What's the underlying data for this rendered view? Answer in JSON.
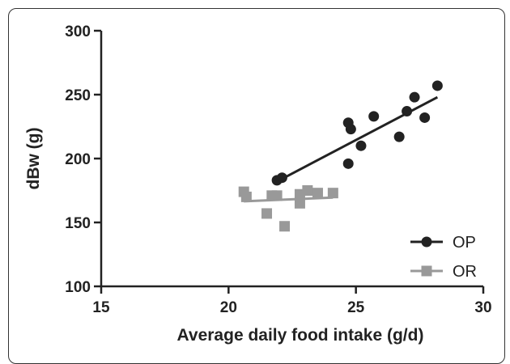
{
  "chart_data": {
    "type": "scatter",
    "xlabel": "Average daily food intake (g/d)",
    "ylabel": "dBw (g)",
    "xlim": [
      15,
      30
    ],
    "ylim": [
      100,
      300
    ],
    "xticks": [
      15,
      20,
      25,
      30
    ],
    "yticks": [
      100,
      150,
      200,
      250,
      300
    ],
    "legend_position": "bottom-right",
    "series": [
      {
        "name": "OP",
        "marker": "circle",
        "color": "#222222",
        "points": [
          {
            "x": 21.9,
            "y": 183
          },
          {
            "x": 22.1,
            "y": 185
          },
          {
            "x": 24.7,
            "y": 228
          },
          {
            "x": 24.8,
            "y": 223
          },
          {
            "x": 24.7,
            "y": 196
          },
          {
            "x": 25.2,
            "y": 210
          },
          {
            "x": 25.7,
            "y": 233
          },
          {
            "x": 26.7,
            "y": 217
          },
          {
            "x": 27.0,
            "y": 237
          },
          {
            "x": 27.3,
            "y": 248
          },
          {
            "x": 27.7,
            "y": 232
          },
          {
            "x": 28.2,
            "y": 257
          }
        ],
        "fit": {
          "x": [
            21.9,
            28.2
          ],
          "y": [
            182,
            248
          ]
        }
      },
      {
        "name": "OR",
        "marker": "square",
        "color": "#999999",
        "points": [
          {
            "x": 20.6,
            "y": 174
          },
          {
            "x": 20.7,
            "y": 170
          },
          {
            "x": 21.5,
            "y": 157
          },
          {
            "x": 21.7,
            "y": 171
          },
          {
            "x": 21.9,
            "y": 171
          },
          {
            "x": 22.2,
            "y": 147
          },
          {
            "x": 22.8,
            "y": 165
          },
          {
            "x": 22.8,
            "y": 172
          },
          {
            "x": 23.1,
            "y": 175
          },
          {
            "x": 23.5,
            "y": 173
          },
          {
            "x": 24.1,
            "y": 173
          }
        ],
        "fit": {
          "x": [
            20.6,
            24.1
          ],
          "y": [
            166.5,
            169.5
          ]
        }
      }
    ]
  }
}
